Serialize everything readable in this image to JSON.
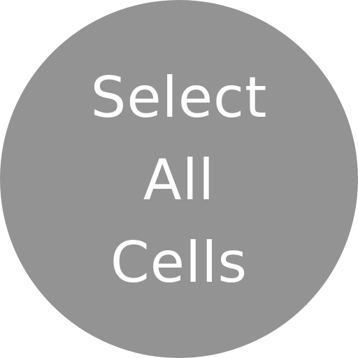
{
  "button": {
    "label_lines": [
      "Select",
      "All",
      "Cells"
    ]
  },
  "colors": {
    "circle": "#939393",
    "text": "#ffffff",
    "background": "#ffffff"
  }
}
